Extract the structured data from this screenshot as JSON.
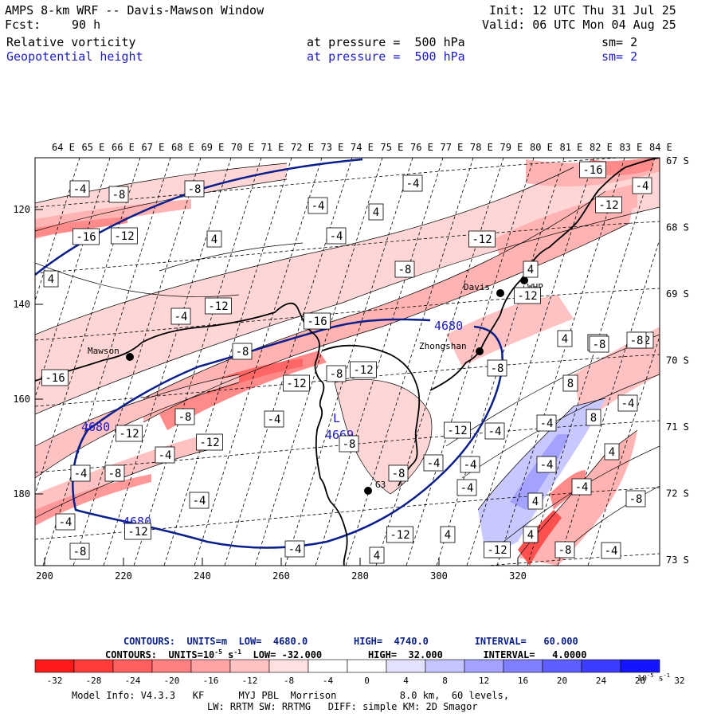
{
  "header": {
    "title": "AMPS 8-km WRF -- Davis-Mawson Window",
    "fcst_label": "Fcst:",
    "fcst_value": "90 h",
    "init": "Init: 12 UTC Thu 31 Jul 25",
    "valid": "Valid: 06 UTC Mon 04 Aug 25",
    "field1_name": "Relative vorticity",
    "field1_level": "at pressure =  500 hPa",
    "field1_sm": "sm= 2",
    "field2_name": "Geopotential height",
    "field2_level": "at pressure =  500 hPa",
    "field2_sm": "sm= 2"
  },
  "map": {
    "lon_labels": [
      "64 E",
      "65 E",
      "66 E",
      "67 E",
      "68 E",
      "69 E",
      "70 E",
      "71 E",
      "72 E",
      "73 E",
      "74 E",
      "75 E",
      "76 E",
      "77 E",
      "78 E",
      "79 E",
      "80 E",
      "81 E",
      "82 E",
      "83 E",
      "84 E"
    ],
    "lat_labels": [
      "67 S",
      "68 S",
      "69 S",
      "70 S",
      "71 S",
      "72 S",
      "73 S"
    ],
    "x_ticks": [
      "200",
      "220",
      "240",
      "260",
      "280",
      "300",
      "320"
    ],
    "y_ticks": [
      "120",
      "140",
      "160",
      "180"
    ],
    "stations": [
      {
        "name": "Mawson"
      },
      {
        "name": "Davis"
      },
      {
        "name": "WHP"
      },
      {
        "name": "Zhongshan"
      },
      {
        "name": "G3"
      }
    ],
    "low_marker": "L",
    "low_value": "4669",
    "height_labels": [
      "4680",
      "4680",
      "4680"
    ],
    "vort_labels": [
      "-4",
      "-8",
      "-8",
      "-16",
      "-12",
      "4",
      "-4",
      "4",
      "-4",
      "4",
      "-4",
      "-8",
      "-12",
      "-16",
      "-12",
      "-4",
      "-8",
      "-12",
      "-8",
      "-12",
      "-16",
      "-12",
      "-8",
      "-4",
      "-8",
      "-4",
      "-12",
      "-8",
      "-4",
      "-4",
      "-12",
      "-4",
      "-8",
      "-4",
      "4",
      "-12",
      "-8",
      "-4",
      "-12",
      "-4",
      "-4",
      "4",
      "-4",
      "-8",
      "8",
      "-4",
      "12",
      "8",
      "-4",
      "-8",
      "-12",
      "4",
      "-12",
      "-4",
      "-16",
      "-4",
      "4",
      "-4",
      "4",
      "-4",
      "4",
      "4",
      "-8",
      "-4",
      "-12",
      "8",
      "-4",
      "-4",
      "-8",
      "-8"
    ],
    "colors": {
      "height_contour": "#0a1f8c",
      "coast": "#000000"
    }
  },
  "footer": {
    "contours1": "CONTOURS:  UNITS=m  LOW=  4680.0        HIGH=  4740.0        INTERVAL=   60.000",
    "contours2_pre": "CONTOURS:  UNITS=10",
    "contours2_sup": "-5",
    "contours2_mid": " s",
    "contours2_sup2": "-1",
    "contours2_post": "  LOW= -32.000        HIGH=  32.000       INTERVAL=   4.0000",
    "colorbar_labels": [
      "-32",
      "-28",
      "-24",
      "-20",
      "-16",
      "-12",
      "-8",
      "-4",
      "0",
      "4",
      "8",
      "12",
      "16",
      "20",
      "24",
      "28",
      "32"
    ],
    "colorbar_unit_pre": "10",
    "colorbar_unit_sup": "-5",
    "colorbar_unit_mid": " s",
    "colorbar_unit_sup2": "-1",
    "colorbar_colors": [
      "#ff1a1a",
      "#ff3c3c",
      "#ff5f5f",
      "#ff8080",
      "#ffa3a3",
      "#ffc2c2",
      "#ffe0e0",
      "#ffffff",
      "#ffffff",
      "#e2e2ff",
      "#c4c4ff",
      "#a3a3ff",
      "#8080ff",
      "#5f5fff",
      "#3c3cff",
      "#1414ff"
    ],
    "model_info": "Model Info: V4.3.3   KF      MYJ PBL  Morrison           8.0 km,  60 levels,",
    "model_info2": "LW: RRTM SW: RRTMG   DIFF: simple KM: 2D Smagor"
  }
}
